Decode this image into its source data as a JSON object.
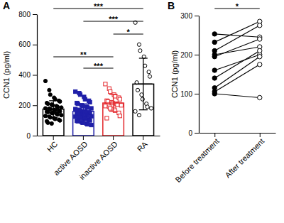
{
  "chart_data": [
    {
      "type": "bar",
      "title": "A",
      "y_label": "CCN1 (pg/ml)",
      "categories": [
        "HC",
        "active AOSD",
        "inactive AOSD",
        "RA"
      ],
      "values": [
        175,
        160,
        215,
        340
      ],
      "errors": [
        55,
        50,
        55,
        170
      ],
      "colors": [
        "#000000",
        "#1f1fa8",
        "#e3262b",
        "#000000"
      ],
      "points": [
        {
          "color": "#000000",
          "marker": "circle",
          "values": [
            360,
            300,
            270,
            250,
            240,
            230,
            225,
            215,
            210,
            205,
            200,
            195,
            190,
            185,
            180,
            178,
            175,
            170,
            168,
            165,
            160,
            158,
            155,
            150,
            148,
            145,
            140,
            135,
            130,
            125,
            120,
            115,
            110,
            105,
            100,
            95,
            85,
            80
          ]
        },
        {
          "color": "#1f1fa8",
          "marker": "square",
          "values": [
            290,
            280,
            270,
            255,
            240,
            230,
            220,
            215,
            210,
            200,
            195,
            190,
            185,
            180,
            175,
            170,
            165,
            160,
            158,
            155,
            150,
            148,
            145,
            140,
            138,
            135,
            130,
            128,
            125,
            120,
            118,
            115,
            110,
            105,
            100,
            98,
            95,
            90,
            85,
            80,
            75,
            70
          ]
        },
        {
          "color": "#e3262b",
          "marker": "open-square",
          "values": [
            340,
            310,
            290,
            270,
            260,
            250,
            240,
            230,
            225,
            220,
            215,
            210,
            205,
            200,
            195,
            190,
            180,
            175,
            165,
            150,
            130,
            115
          ]
        },
        {
          "color": "#000000",
          "marker": "open-circle",
          "values": [
            745,
            600,
            560,
            520,
            460,
            420,
            390,
            350,
            300,
            270,
            240,
            210,
            190,
            180,
            160,
            135
          ]
        }
      ],
      "annotations": [
        {
          "text": "***",
          "between": [
            "HC",
            "RA"
          ]
        },
        {
          "text": "***",
          "between": [
            "active AOSD",
            "RA"
          ]
        },
        {
          "text": "*",
          "between": [
            "inactive AOSD",
            "RA"
          ]
        },
        {
          "text": "**",
          "between": [
            "HC",
            "inactive AOSD"
          ]
        },
        {
          "text": "***",
          "between": [
            "active AOSD",
            "inactive AOSD"
          ]
        }
      ],
      "ylim": [
        0,
        800
      ],
      "yticks": [
        0,
        200,
        400,
        600,
        800
      ]
    },
    {
      "type": "line",
      "title": "B",
      "y_label": "CCN1 (pg/ml)",
      "categories": [
        "Before treatment",
        "After treatment"
      ],
      "color": "#000000",
      "marker": "circle",
      "series": [
        {
          "values": [
            253,
            245
          ]
        },
        {
          "values": [
            232,
            285
          ]
        },
        {
          "values": [
            210,
            275
          ]
        },
        {
          "values": [
            200,
            220
          ]
        },
        {
          "values": [
            195,
            240
          ]
        },
        {
          "values": [
            160,
            200
          ]
        },
        {
          "values": [
            140,
            210
          ]
        },
        {
          "values": [
            115,
            195
          ]
        },
        {
          "values": [
            105,
            175
          ]
        },
        {
          "values": [
            100,
            90
          ]
        }
      ],
      "annotations": [
        {
          "text": "*",
          "between": [
            "Before treatment",
            "After treatment"
          ]
        }
      ],
      "ylim": [
        0,
        300
      ],
      "yticks": [
        0,
        100,
        200,
        300
      ]
    }
  ]
}
